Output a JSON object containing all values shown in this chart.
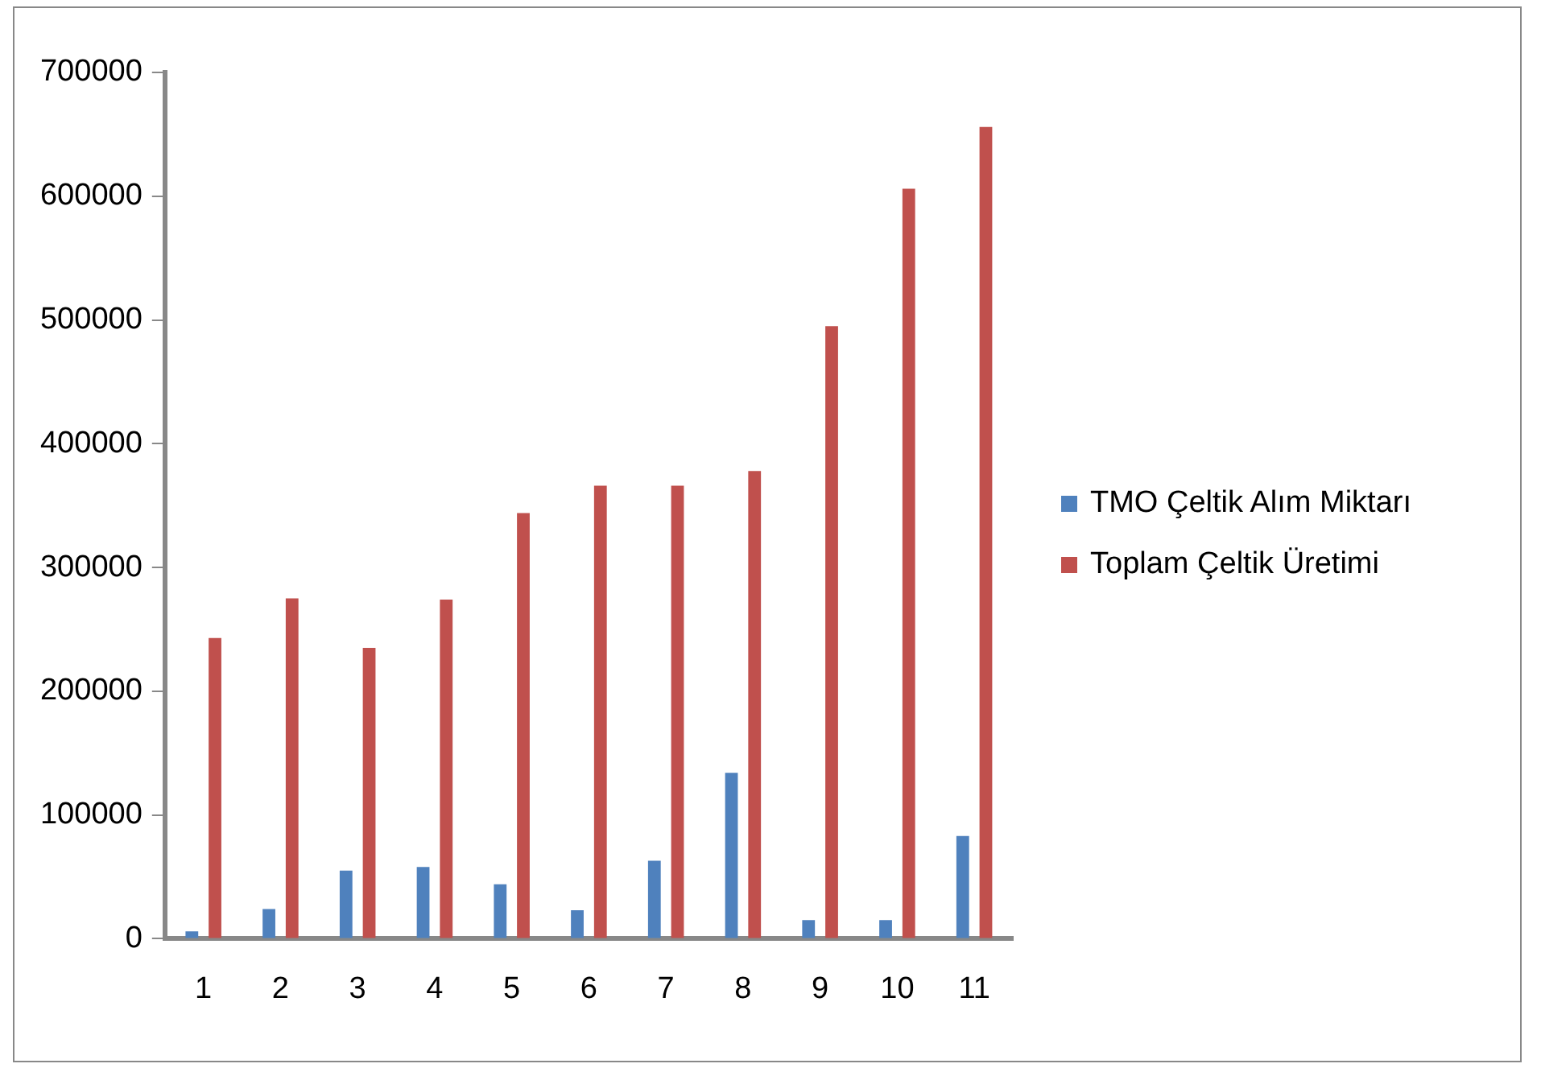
{
  "chart_data": {
    "type": "bar",
    "categories": [
      "1",
      "2",
      "3",
      "4",
      "5",
      "6",
      "7",
      "8",
      "9",
      "10",
      "11"
    ],
    "series": [
      {
        "name": "TMO Çeltik Alım Miktarı",
        "color": "#4f81bd",
        "values": [
          6000,
          24000,
          55000,
          58000,
          44000,
          23000,
          63000,
          134000,
          15000,
          15000,
          83000
        ]
      },
      {
        "name": "Toplam Çeltik Üretimi",
        "color": "#c0504d",
        "values": [
          243000,
          275000,
          235000,
          274000,
          344000,
          366000,
          366000,
          378000,
          495000,
          606000,
          656000
        ]
      }
    ],
    "ylim": [
      0,
      700000
    ],
    "yticks": [
      0,
      100000,
      200000,
      300000,
      400000,
      500000,
      600000,
      700000
    ],
    "grid": false,
    "legend": "right"
  }
}
